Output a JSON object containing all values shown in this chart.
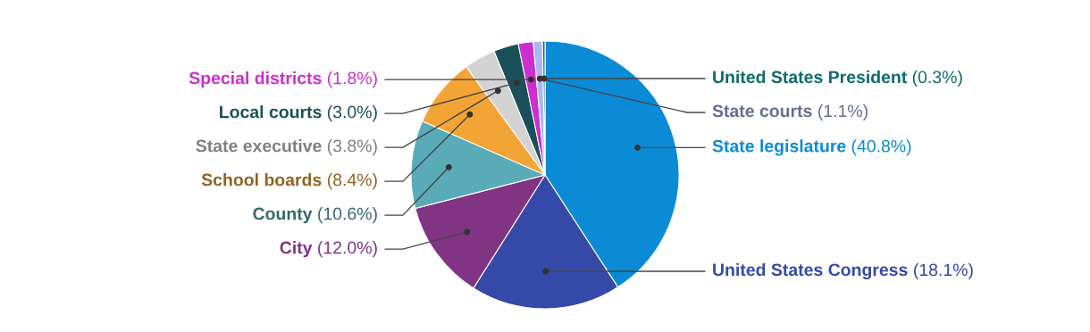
{
  "chart_data": {
    "type": "pie",
    "categories": [
      "State legislature",
      "United States Congress",
      "City",
      "County",
      "School boards",
      "State executive",
      "Local courts",
      "Special districts",
      "State courts",
      "United States President"
    ],
    "values": [
      40.8,
      18.1,
      12.0,
      10.6,
      8.4,
      3.8,
      3.0,
      1.8,
      1.1,
      0.3
    ],
    "colors": [
      "#0b8bd6",
      "#3549a8",
      "#813384",
      "#59abb8",
      "#f2a535",
      "#d3d3d3",
      "#19505a",
      "#cc2ed1",
      "#a9b8f0",
      "#0e6b6b"
    ],
    "value_labels": [
      "(40.8%)",
      "(18.1%)",
      "(12.0%)",
      "(10.6%)",
      "(8.4%)",
      "(3.8%)",
      "(3.0%)",
      "(1.8%)",
      "(1.1%)",
      "(0.3%)"
    ]
  }
}
